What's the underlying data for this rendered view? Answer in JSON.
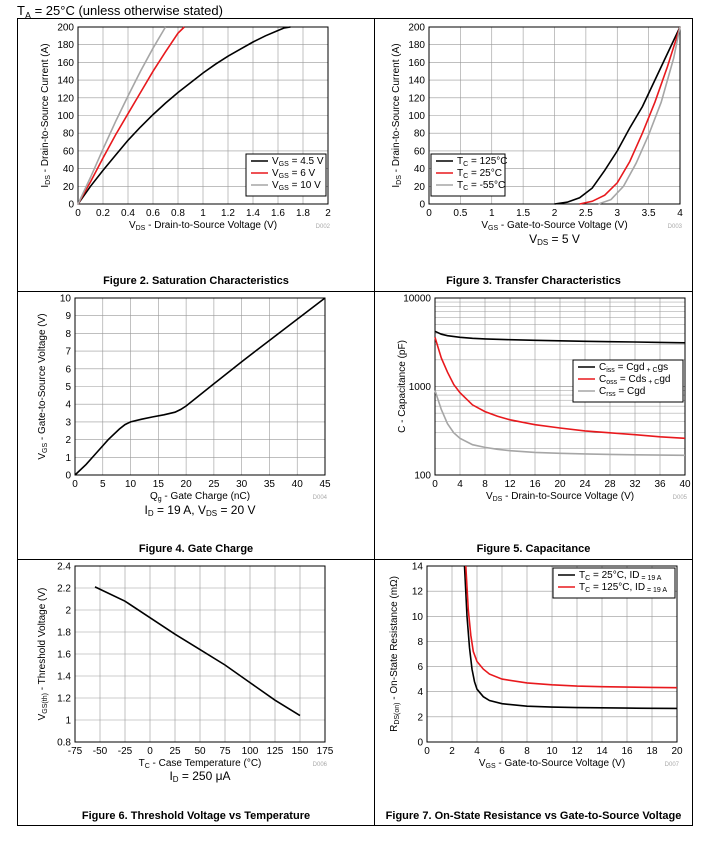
{
  "header": {
    "pre": "T",
    "sub": "A",
    "post": " = 25°C (unless otherwise stated)"
  },
  "chart_data": [
    {
      "id": "fig2",
      "type": "line",
      "caption": "Figure 2. Saturation Characteristics",
      "code": "D002",
      "xlabel": [
        [
          "V",
          "DS",
          " - Drain-to-Source Voltage (V)"
        ]
      ],
      "ylabel": [
        [
          "I",
          "DS",
          " - Drain-to-Source Current (A)"
        ]
      ],
      "xlim": [
        0,
        2
      ],
      "ylim": [
        0,
        200
      ],
      "xticks": [
        0,
        0.2,
        0.4,
        0.6,
        0.8,
        1,
        1.2,
        1.4,
        1.6,
        1.8,
        2
      ],
      "yticks": [
        0,
        20,
        40,
        60,
        80,
        100,
        120,
        140,
        160,
        180,
        200
      ],
      "xlog": false,
      "ylog": false,
      "grid": true,
      "legend_position": "bottom-right",
      "condition": [],
      "series": [
        {
          "label": [
            "V",
            "GS",
            " = 4.5 V"
          ],
          "color": "#000000",
          "x": [
            0,
            0.1,
            0.2,
            0.3,
            0.4,
            0.5,
            0.6,
            0.7,
            0.8,
            0.9,
            1.0,
            1.1,
            1.2,
            1.3,
            1.4,
            1.5,
            1.6,
            1.65,
            1.7
          ],
          "y": [
            0,
            20,
            38,
            55,
            72,
            87,
            101,
            114,
            126,
            137,
            148,
            158,
            167,
            175,
            183,
            190,
            196,
            199,
            200
          ]
        },
        {
          "label": [
            "V",
            "GS",
            " = 6 V"
          ],
          "color": "#e8191d",
          "x": [
            0,
            0.1,
            0.2,
            0.3,
            0.4,
            0.5,
            0.6,
            0.7,
            0.8,
            0.85
          ],
          "y": [
            0,
            25,
            52,
            78,
            102,
            126,
            150,
            172,
            193,
            200
          ]
        },
        {
          "label": [
            "V",
            "GS",
            " = 10 V"
          ],
          "color": "#a6a6a6",
          "x": [
            0,
            0.1,
            0.2,
            0.3,
            0.4,
            0.5,
            0.6,
            0.7
          ],
          "y": [
            0,
            30,
            62,
            93,
            122,
            150,
            176,
            200
          ]
        }
      ]
    },
    {
      "id": "fig3",
      "type": "line",
      "caption": "Figure 3. Transfer Characteristics",
      "code": "D003",
      "xlabel": [
        [
          "V",
          "GS",
          " - Gate-to-Source Voltage (V)"
        ]
      ],
      "ylabel": [
        [
          "I",
          "DS",
          " - Drain-to-Source Current (A)"
        ]
      ],
      "xlim": [
        0,
        4
      ],
      "ylim": [
        0,
        200
      ],
      "xticks": [
        0,
        0.5,
        1,
        1.5,
        2,
        2.5,
        3,
        3.5,
        4
      ],
      "yticks": [
        0,
        20,
        40,
        60,
        80,
        100,
        120,
        140,
        160,
        180,
        200
      ],
      "xlog": false,
      "ylog": false,
      "grid": true,
      "legend_position": "bottom-left",
      "condition": [
        [
          "V",
          "DS",
          " = 5 V"
        ]
      ],
      "series": [
        {
          "label": [
            "T",
            "C",
            " = 125°C"
          ],
          "color": "#000000",
          "x": [
            2.0,
            2.2,
            2.4,
            2.6,
            2.8,
            3.0,
            3.2,
            3.4,
            3.6,
            3.8,
            4.0
          ],
          "y": [
            0,
            2,
            7,
            18,
            38,
            60,
            86,
            110,
            140,
            170,
            200
          ]
        },
        {
          "label": [
            "T",
            "C",
            " = 25°C"
          ],
          "color": "#e8191d",
          "x": [
            2.4,
            2.6,
            2.8,
            3.0,
            3.2,
            3.4,
            3.6,
            3.8,
            4.0
          ],
          "y": [
            0,
            3,
            10,
            24,
            48,
            80,
            115,
            155,
            200
          ]
        },
        {
          "label": [
            "T",
            "C",
            " = -55°C"
          ],
          "color": "#a6a6a6",
          "x": [
            2.7,
            2.9,
            3.1,
            3.3,
            3.5,
            3.7,
            3.9,
            4.0
          ],
          "y": [
            0,
            5,
            20,
            46,
            78,
            115,
            165,
            200
          ]
        }
      ]
    },
    {
      "id": "fig4",
      "type": "line",
      "caption": "Figure 4. Gate Charge",
      "code": "D004",
      "xlabel": [
        [
          "Q",
          "g",
          " - Gate Charge (nC)"
        ]
      ],
      "ylabel": [
        [
          "V",
          "GS",
          " - Gate-to-Source Voltage (V)"
        ]
      ],
      "xlim": [
        0,
        45
      ],
      "ylim": [
        0,
        10
      ],
      "xticks": [
        0,
        5,
        10,
        15,
        20,
        25,
        30,
        35,
        40,
        45
      ],
      "yticks": [
        0,
        1,
        2,
        3,
        4,
        5,
        6,
        7,
        8,
        9,
        10
      ],
      "xlog": false,
      "ylog": false,
      "grid": true,
      "legend_position": "none",
      "condition": [
        [
          "I",
          "D",
          " = 19 A, "
        ],
        [
          "V",
          "DS",
          " = 20 V"
        ]
      ],
      "series": [
        {
          "label": [
            "",
            "",
            ""
          ],
          "color": "#000000",
          "x": [
            0,
            2,
            4,
            6,
            8,
            9,
            10,
            12,
            14,
            16,
            18,
            19,
            20,
            22,
            25,
            30,
            35,
            40,
            45
          ],
          "y": [
            0,
            0.6,
            1.3,
            2.0,
            2.6,
            2.85,
            3.0,
            3.15,
            3.28,
            3.4,
            3.55,
            3.7,
            3.9,
            4.4,
            5.15,
            6.4,
            7.6,
            8.8,
            10
          ]
        }
      ]
    },
    {
      "id": "fig5",
      "type": "line",
      "caption": "Figure 5. Capacitance",
      "code": "D005",
      "xlabel": [
        [
          "V",
          "DS",
          " - Drain-to-Source Voltage (V)"
        ]
      ],
      "ylabel": [
        [
          "C - Capacitance (pF)",
          "",
          ""
        ]
      ],
      "xlim": [
        0,
        40
      ],
      "ylim": [
        100,
        10000
      ],
      "xticks": [
        0,
        4,
        8,
        12,
        16,
        20,
        24,
        28,
        32,
        36,
        40
      ],
      "yticks": [
        100,
        1000,
        10000
      ],
      "xlog": false,
      "ylog": true,
      "grid": true,
      "legend_position": "right",
      "condition": [],
      "series": [
        {
          "label": [
            "C",
            "iss",
            " = C"
          ],
          "label2": [
            "gd",
            " + C",
            "gs"
          ],
          "color": "#000000",
          "x": [
            0,
            1,
            2,
            4,
            6,
            8,
            12,
            16,
            20,
            24,
            28,
            32,
            36,
            40
          ],
          "y": [
            4200,
            3900,
            3750,
            3600,
            3500,
            3450,
            3380,
            3330,
            3280,
            3240,
            3210,
            3180,
            3150,
            3120
          ]
        },
        {
          "label": [
            "C",
            "oss",
            " = C"
          ],
          "label2": [
            "ds",
            " + C",
            "gd"
          ],
          "color": "#e8191d",
          "x": [
            0,
            1,
            2,
            3,
            4,
            6,
            8,
            10,
            12,
            16,
            20,
            24,
            28,
            32,
            36,
            40
          ],
          "y": [
            3600,
            2100,
            1450,
            1050,
            850,
            620,
            520,
            460,
            420,
            370,
            340,
            315,
            300,
            285,
            270,
            260
          ]
        },
        {
          "label": [
            "C",
            "rss",
            " = C"
          ],
          "label2": [
            "gd",
            "",
            ""
          ],
          "color": "#a6a6a6",
          "x": [
            0,
            1,
            2,
            3,
            4,
            6,
            8,
            10,
            12,
            16,
            20,
            24,
            28,
            32,
            36,
            40
          ],
          "y": [
            900,
            550,
            380,
            300,
            260,
            220,
            205,
            195,
            188,
            180,
            176,
            173,
            171,
            169,
            168,
            167
          ]
        }
      ]
    },
    {
      "id": "fig6",
      "type": "line",
      "caption": "Figure 6. Threshold Voltage vs Temperature",
      "code": "D006",
      "xlabel": [
        [
          "T",
          "C",
          " - Case Temperature (°C)"
        ]
      ],
      "ylabel": [
        [
          "V",
          "GS(th)",
          " - Threshold Voltage (V)"
        ]
      ],
      "xlim": [
        -75,
        175
      ],
      "ylim": [
        0.8,
        2.4
      ],
      "xticks": [
        -75,
        -50,
        -25,
        0,
        25,
        50,
        75,
        100,
        125,
        150,
        175
      ],
      "yticks": [
        0.8,
        1,
        1.2,
        1.4,
        1.6,
        1.8,
        2,
        2.2,
        2.4
      ],
      "xlog": false,
      "ylog": false,
      "grid": true,
      "legend_position": "none",
      "condition": [
        [
          "I",
          "D",
          " = 250 μA"
        ]
      ],
      "series": [
        {
          "label": [
            "",
            "",
            ""
          ],
          "color": "#000000",
          "x": [
            -55,
            -25,
            0,
            25,
            50,
            75,
            100,
            125,
            150
          ],
          "y": [
            2.21,
            2.08,
            1.93,
            1.78,
            1.64,
            1.5,
            1.34,
            1.18,
            1.04
          ]
        }
      ]
    },
    {
      "id": "fig7",
      "type": "line",
      "caption": "Figure 7. On-State Resistance vs Gate-to-Source Voltage",
      "code": "D007",
      "xlabel": [
        [
          "V",
          "GS",
          " - Gate-to-Source Voltage (V)"
        ]
      ],
      "ylabel": [
        [
          "R",
          "DS(on)",
          " - On-State Resistance (mΩ)"
        ]
      ],
      "xlim": [
        0,
        20
      ],
      "ylim": [
        0,
        14
      ],
      "xticks": [
        0,
        2,
        4,
        6,
        8,
        10,
        12,
        14,
        16,
        18,
        20
      ],
      "yticks": [
        0,
        2,
        4,
        6,
        8,
        10,
        12,
        14
      ],
      "xlog": false,
      "ylog": false,
      "grid": true,
      "legend_position": "top-right",
      "condition": [],
      "series": [
        {
          "label": [
            "T",
            "C",
            " = 25°C, I"
          ],
          "label2": [
            "D",
            " = 19 A",
            ""
          ],
          "color": "#000000",
          "x": [
            3.0,
            3.2,
            3.4,
            3.6,
            3.8,
            4.0,
            4.5,
            5,
            6,
            8,
            10,
            12,
            14,
            16,
            18,
            20
          ],
          "y": [
            14,
            10,
            7.5,
            5.8,
            4.8,
            4.2,
            3.6,
            3.3,
            3.05,
            2.85,
            2.78,
            2.74,
            2.72,
            2.7,
            2.68,
            2.67
          ]
        },
        {
          "label": [
            "T",
            "C",
            " = 125°C, I"
          ],
          "label2": [
            "D",
            " = 19 A",
            ""
          ],
          "color": "#e8191d",
          "x": [
            3.1,
            3.3,
            3.5,
            3.7,
            4.0,
            4.5,
            5,
            6,
            8,
            10,
            12,
            14,
            16,
            18,
            20
          ],
          "y": [
            14,
            10.5,
            8.5,
            7.2,
            6.4,
            5.8,
            5.4,
            5.0,
            4.7,
            4.55,
            4.45,
            4.4,
            4.37,
            4.34,
            4.32
          ]
        }
      ]
    }
  ]
}
